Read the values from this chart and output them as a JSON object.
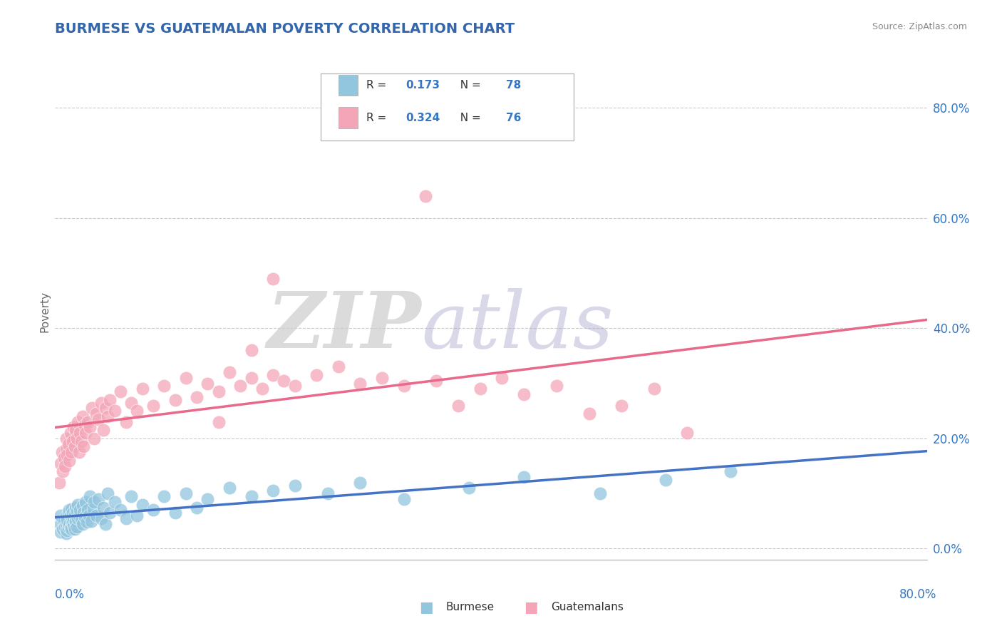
{
  "title": "BURMESE VS GUATEMALAN POVERTY CORRELATION CHART",
  "source": "Source: ZipAtlas.com",
  "ylabel": "Poverty",
  "ytick_labels": [
    "0.0%",
    "20.0%",
    "40.0%",
    "60.0%",
    "80.0%"
  ],
  "ytick_values": [
    0.0,
    0.2,
    0.4,
    0.6,
    0.8
  ],
  "xrange": [
    0.0,
    0.8
  ],
  "yrange": [
    -0.02,
    0.88
  ],
  "burmese_R": 0.173,
  "burmese_N": 78,
  "guatemalan_R": 0.324,
  "guatemalan_N": 76,
  "burmese_color": "#92C5DE",
  "guatemalan_color": "#F4A6B8",
  "burmese_line_color": "#4472C4",
  "guatemalan_line_color": "#E8698A",
  "legend_burmese_label": "Burmese",
  "legend_guatemalan_label": "Guatemalans",
  "title_color": "#3366AA",
  "background_color": "#FFFFFF",
  "grid_color": "#BBBBBB",
  "burmese_x": [
    0.005,
    0.005,
    0.005,
    0.007,
    0.008,
    0.009,
    0.01,
    0.01,
    0.01,
    0.011,
    0.011,
    0.012,
    0.012,
    0.013,
    0.013,
    0.014,
    0.014,
    0.015,
    0.015,
    0.015,
    0.016,
    0.016,
    0.017,
    0.017,
    0.018,
    0.018,
    0.019,
    0.019,
    0.02,
    0.02,
    0.021,
    0.021,
    0.022,
    0.023,
    0.024,
    0.025,
    0.025,
    0.026,
    0.027,
    0.028,
    0.029,
    0.03,
    0.031,
    0.032,
    0.033,
    0.035,
    0.036,
    0.038,
    0.04,
    0.042,
    0.044,
    0.046,
    0.048,
    0.05,
    0.055,
    0.06,
    0.065,
    0.07,
    0.075,
    0.08,
    0.09,
    0.1,
    0.11,
    0.12,
    0.13,
    0.14,
    0.16,
    0.18,
    0.2,
    0.22,
    0.25,
    0.28,
    0.32,
    0.38,
    0.43,
    0.5,
    0.56,
    0.62
  ],
  "burmese_y": [
    0.03,
    0.045,
    0.06,
    0.035,
    0.05,
    0.04,
    0.028,
    0.042,
    0.058,
    0.033,
    0.052,
    0.04,
    0.065,
    0.045,
    0.07,
    0.038,
    0.06,
    0.05,
    0.072,
    0.035,
    0.048,
    0.065,
    0.042,
    0.055,
    0.035,
    0.062,
    0.05,
    0.075,
    0.04,
    0.068,
    0.055,
    0.08,
    0.06,
    0.07,
    0.052,
    0.078,
    0.045,
    0.065,
    0.058,
    0.085,
    0.048,
    0.07,
    0.06,
    0.095,
    0.05,
    0.072,
    0.085,
    0.06,
    0.09,
    0.055,
    0.075,
    0.045,
    0.1,
    0.065,
    0.085,
    0.07,
    0.055,
    0.095,
    0.06,
    0.08,
    0.07,
    0.095,
    0.065,
    0.1,
    0.075,
    0.09,
    0.11,
    0.095,
    0.105,
    0.115,
    0.1,
    0.12,
    0.09,
    0.11,
    0.13,
    0.1,
    0.125,
    0.14
  ],
  "guatemalan_x": [
    0.004,
    0.005,
    0.006,
    0.007,
    0.008,
    0.009,
    0.01,
    0.01,
    0.011,
    0.012,
    0.013,
    0.014,
    0.015,
    0.016,
    0.017,
    0.018,
    0.019,
    0.02,
    0.021,
    0.022,
    0.023,
    0.024,
    0.025,
    0.026,
    0.027,
    0.028,
    0.03,
    0.032,
    0.034,
    0.036,
    0.038,
    0.04,
    0.042,
    0.044,
    0.046,
    0.048,
    0.05,
    0.055,
    0.06,
    0.065,
    0.07,
    0.075,
    0.08,
    0.09,
    0.1,
    0.11,
    0.12,
    0.13,
    0.14,
    0.15,
    0.16,
    0.17,
    0.18,
    0.19,
    0.2,
    0.21,
    0.22,
    0.24,
    0.26,
    0.28,
    0.3,
    0.32,
    0.35,
    0.37,
    0.39,
    0.41,
    0.43,
    0.46,
    0.49,
    0.52,
    0.55,
    0.58,
    0.34,
    0.2,
    0.18,
    0.15
  ],
  "guatemalan_y": [
    0.12,
    0.155,
    0.175,
    0.14,
    0.165,
    0.15,
    0.18,
    0.2,
    0.17,
    0.19,
    0.16,
    0.21,
    0.175,
    0.195,
    0.22,
    0.185,
    0.215,
    0.2,
    0.23,
    0.175,
    0.21,
    0.195,
    0.24,
    0.185,
    0.225,
    0.21,
    0.23,
    0.22,
    0.255,
    0.2,
    0.245,
    0.235,
    0.265,
    0.215,
    0.255,
    0.24,
    0.27,
    0.25,
    0.285,
    0.23,
    0.265,
    0.25,
    0.29,
    0.26,
    0.295,
    0.27,
    0.31,
    0.275,
    0.3,
    0.285,
    0.32,
    0.295,
    0.31,
    0.29,
    0.315,
    0.305,
    0.295,
    0.315,
    0.33,
    0.3,
    0.31,
    0.295,
    0.305,
    0.26,
    0.29,
    0.31,
    0.28,
    0.295,
    0.245,
    0.26,
    0.29,
    0.21,
    0.64,
    0.49,
    0.36,
    0.23
  ]
}
